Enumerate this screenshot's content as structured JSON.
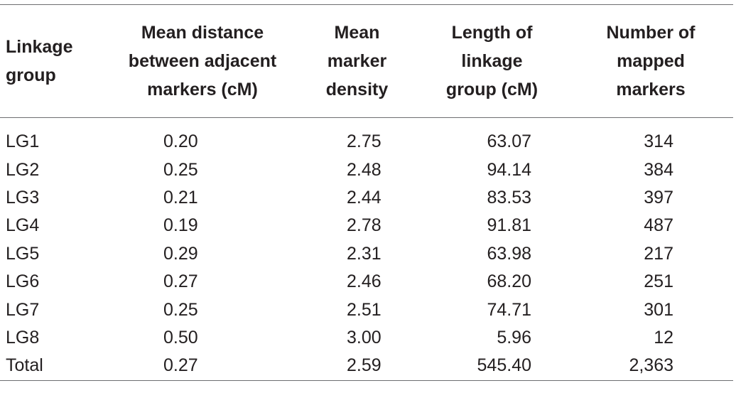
{
  "table": {
    "headers": [
      [
        "Linkage",
        "group"
      ],
      [
        "Mean distance",
        "between adjacent",
        "markers (cM)"
      ],
      [
        "Mean",
        "marker",
        "density"
      ],
      [
        "Length of",
        "linkage",
        "group (cM)"
      ],
      [
        "Number of",
        "mapped",
        "markers"
      ]
    ],
    "rows": [
      [
        "LG1",
        "0.20",
        "2.75",
        "63.07",
        "314"
      ],
      [
        "LG2",
        "0.25",
        "2.48",
        "94.14",
        "384"
      ],
      [
        "LG3",
        "0.21",
        "2.44",
        "83.53",
        "397"
      ],
      [
        "LG4",
        "0.19",
        "2.78",
        "91.81",
        "487"
      ],
      [
        "LG5",
        "0.29",
        "2.31",
        "63.98",
        "217"
      ],
      [
        "LG6",
        "0.27",
        "2.46",
        "68.20",
        "251"
      ],
      [
        "LG7",
        "0.25",
        "2.51",
        "74.71",
        "301"
      ],
      [
        "LG8",
        "0.50",
        "3.00",
        "5.96",
        "12"
      ],
      [
        "Total",
        "0.27",
        "2.59",
        "545.40",
        "2,363"
      ]
    ]
  }
}
